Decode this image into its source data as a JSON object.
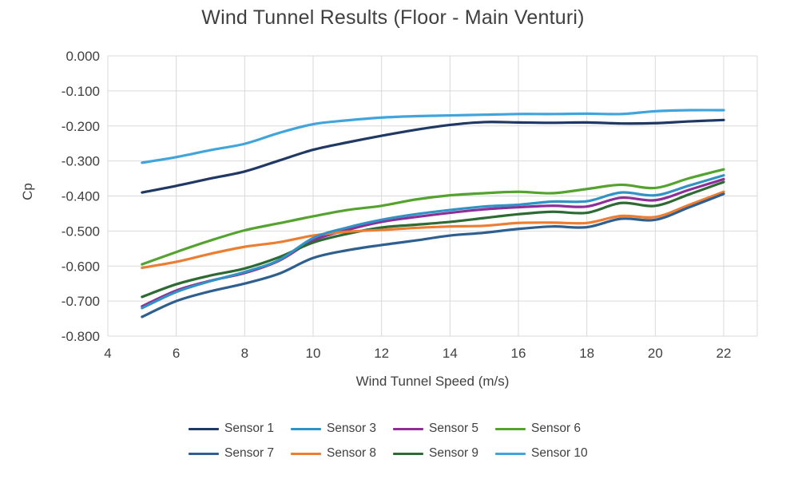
{
  "chart_data": {
    "type": "line",
    "title": "Wind Tunnel Results (Floor - Main Venturi)",
    "xlabel": "Wind Tunnel Speed (m/s)",
    "ylabel": "Cp",
    "xlim": [
      4,
      23
    ],
    "ylim": [
      -0.8,
      0
    ],
    "grid": true,
    "legend_position": "bottom",
    "x_ticks": [
      4,
      6,
      8,
      10,
      12,
      14,
      16,
      18,
      20,
      22
    ],
    "y_ticks": [
      0,
      -0.1,
      -0.2,
      -0.3,
      -0.4,
      -0.5,
      -0.6,
      -0.7,
      -0.8
    ],
    "y_tick_labels": [
      "0.000",
      "-0.100",
      "-0.200",
      "-0.300",
      "-0.400",
      "-0.500",
      "-0.600",
      "-0.700",
      "-0.800"
    ],
    "grid_color": "#d9d9d9",
    "tick_color": "#404040",
    "x": [
      5,
      6,
      7,
      8,
      9,
      10,
      11,
      12,
      13,
      14,
      15,
      16,
      17,
      18,
      19,
      20,
      21,
      22
    ],
    "series": [
      {
        "name": "Sensor 1",
        "color": "#1f3864",
        "values": [
          -0.39,
          -0.371,
          -0.35,
          -0.33,
          -0.299,
          -0.268,
          -0.247,
          -0.228,
          -0.211,
          -0.197,
          -0.189,
          -0.19,
          -0.191,
          -0.19,
          -0.193,
          -0.192,
          -0.187,
          -0.183
        ]
      },
      {
        "name": "Sensor 3",
        "color": "#3193c4",
        "values": [
          -0.72,
          -0.674,
          -0.643,
          -0.617,
          -0.583,
          -0.52,
          -0.49,
          -0.468,
          -0.452,
          -0.44,
          -0.43,
          -0.425,
          -0.416,
          -0.415,
          -0.39,
          -0.398,
          -0.37,
          -0.341
        ]
      },
      {
        "name": "Sensor 5",
        "color": "#8e2f97",
        "values": [
          -0.715,
          -0.67,
          -0.642,
          -0.62,
          -0.585,
          -0.527,
          -0.497,
          -0.474,
          -0.46,
          -0.448,
          -0.438,
          -0.432,
          -0.428,
          -0.43,
          -0.405,
          -0.412,
          -0.382,
          -0.352
        ]
      },
      {
        "name": "Sensor 6",
        "color": "#55a32f",
        "values": [
          -0.595,
          -0.56,
          -0.527,
          -0.498,
          -0.478,
          -0.458,
          -0.44,
          -0.428,
          -0.41,
          -0.398,
          -0.392,
          -0.388,
          -0.392,
          -0.38,
          -0.368,
          -0.377,
          -0.349,
          -0.324
        ]
      },
      {
        "name": "Sensor 7",
        "color": "#2e5f8f",
        "values": [
          -0.745,
          -0.7,
          -0.672,
          -0.65,
          -0.622,
          -0.577,
          -0.555,
          -0.54,
          -0.527,
          -0.513,
          -0.505,
          -0.494,
          -0.487,
          -0.489,
          -0.465,
          -0.468,
          -0.432,
          -0.394
        ]
      },
      {
        "name": "Sensor 8",
        "color": "#ec7d31",
        "values": [
          -0.605,
          -0.588,
          -0.565,
          -0.545,
          -0.532,
          -0.513,
          -0.502,
          -0.497,
          -0.491,
          -0.487,
          -0.485,
          -0.477,
          -0.476,
          -0.477,
          -0.457,
          -0.46,
          -0.425,
          -0.388
        ]
      },
      {
        "name": "Sensor 9",
        "color": "#2e6b34",
        "values": [
          -0.688,
          -0.652,
          -0.627,
          -0.607,
          -0.575,
          -0.533,
          -0.508,
          -0.49,
          -0.482,
          -0.474,
          -0.463,
          -0.452,
          -0.445,
          -0.448,
          -0.42,
          -0.428,
          -0.395,
          -0.36
        ]
      },
      {
        "name": "Sensor 10",
        "color": "#41a5dc",
        "values": [
          -0.305,
          -0.289,
          -0.269,
          -0.251,
          -0.22,
          -0.195,
          -0.184,
          -0.176,
          -0.172,
          -0.17,
          -0.168,
          -0.166,
          -0.166,
          -0.165,
          -0.166,
          -0.158,
          -0.155,
          -0.155
        ]
      }
    ],
    "draw_order": [
      "Sensor 1",
      "Sensor 5",
      "Sensor 9",
      "Sensor 8",
      "Sensor 7",
      "Sensor 6",
      "Sensor 3",
      "Sensor 10"
    ],
    "legend_rows": [
      [
        "Sensor 1",
        "Sensor 3",
        "Sensor 5",
        "Sensor 6"
      ],
      [
        "Sensor 7",
        "Sensor 8",
        "Sensor 9",
        "Sensor 10"
      ]
    ]
  }
}
